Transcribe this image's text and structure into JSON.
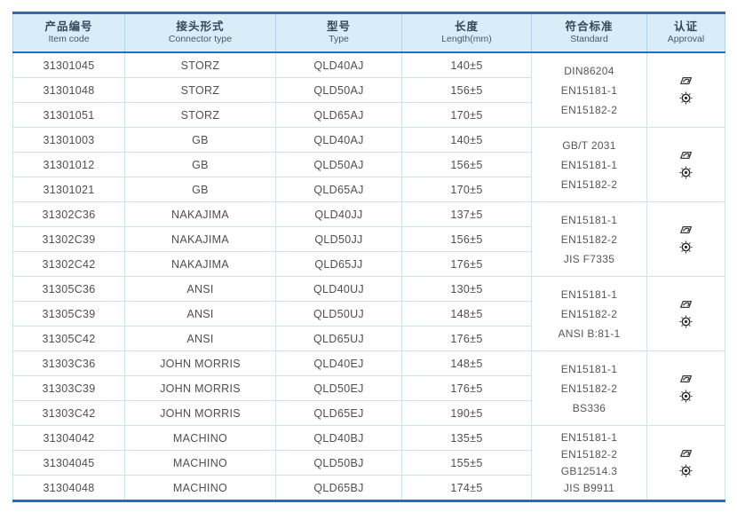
{
  "colors": {
    "accent_dark_blue": "#2a6cb5",
    "header_bg": "#d9edf8",
    "grid_line": "#c3e6f5",
    "header_grid_line": "#a7d8ef",
    "body_text": "#4f4f4f",
    "header_text": "#33475b",
    "icon_color": "#3a3a3a"
  },
  "table": {
    "headers": [
      {
        "zh": "产品编号",
        "en": "Item code"
      },
      {
        "zh": "接头形式",
        "en": "Connector type"
      },
      {
        "zh": "型号",
        "en": "Type"
      },
      {
        "zh": "长度",
        "en": "Length(mm)"
      },
      {
        "zh": "符合标准",
        "en": "Standard"
      },
      {
        "zh": "认证",
        "en": "Approval"
      }
    ],
    "groups": [
      {
        "rows": [
          {
            "item_code": "31301045",
            "connector_type": "STORZ",
            "type": "QLD40AJ",
            "length": "140±5"
          },
          {
            "item_code": "31301048",
            "connector_type": "STORZ",
            "type": "QLD50AJ",
            "length": "156±5"
          },
          {
            "item_code": "31301051",
            "connector_type": "STORZ",
            "type": "QLD65AJ",
            "length": "170±5"
          }
        ],
        "standards": [
          "DIN86204",
          "EN15181-1",
          "EN15182-2"
        ],
        "approval_icons": [
          "cert-logo-icon",
          "seal-badge-icon"
        ]
      },
      {
        "rows": [
          {
            "item_code": "31301003",
            "connector_type": "GB",
            "type": "QLD40AJ",
            "length": "140±5"
          },
          {
            "item_code": "31301012",
            "connector_type": "GB",
            "type": "QLD50AJ",
            "length": "156±5"
          },
          {
            "item_code": "31301021",
            "connector_type": "GB",
            "type": "QLD65AJ",
            "length": "170±5"
          }
        ],
        "standards": [
          "GB/T 2031",
          "EN15181-1",
          "EN15182-2"
        ],
        "approval_icons": [
          "cert-logo-icon",
          "seal-badge-icon"
        ]
      },
      {
        "rows": [
          {
            "item_code": "31302C36",
            "connector_type": "NAKAJIMA",
            "type": "QLD40JJ",
            "length": "137±5"
          },
          {
            "item_code": "31302C39",
            "connector_type": "NAKAJIMA",
            "type": "QLD50JJ",
            "length": "156±5"
          },
          {
            "item_code": "31302C42",
            "connector_type": "NAKAJIMA",
            "type": "QLD65JJ",
            "length": "176±5"
          }
        ],
        "standards": [
          "EN15181-1",
          "EN15182-2",
          "JIS F7335"
        ],
        "approval_icons": [
          "cert-logo-icon",
          "seal-badge-icon"
        ]
      },
      {
        "rows": [
          {
            "item_code": "31305C36",
            "connector_type": "ANSI",
            "type": "QLD40UJ",
            "length": "130±5"
          },
          {
            "item_code": "31305C39",
            "connector_type": "ANSI",
            "type": "QLD50UJ",
            "length": "148±5"
          },
          {
            "item_code": "31305C42",
            "connector_type": "ANSI",
            "type": "QLD65UJ",
            "length": "176±5"
          }
        ],
        "standards": [
          "EN15181-1",
          "EN15182-2",
          "ANSI B:81-1"
        ],
        "approval_icons": [
          "cert-logo-icon",
          "seal-badge-icon"
        ]
      },
      {
        "rows": [
          {
            "item_code": "31303C36",
            "connector_type": "JOHN MORRIS",
            "type": "QLD40EJ",
            "length": "148±5"
          },
          {
            "item_code": "31303C39",
            "connector_type": "JOHN MORRIS",
            "type": "QLD50EJ",
            "length": "176±5"
          },
          {
            "item_code": "31303C42",
            "connector_type": "JOHN MORRIS",
            "type": "QLD65EJ",
            "length": "190±5"
          }
        ],
        "standards": [
          "EN15181-1",
          "EN15182-2",
          "BS336"
        ],
        "approval_icons": [
          "cert-logo-icon",
          "seal-badge-icon"
        ]
      },
      {
        "rows": [
          {
            "item_code": "31304042",
            "connector_type": "MACHINO",
            "type": "QLD40BJ",
            "length": "135±5"
          },
          {
            "item_code": "31304045",
            "connector_type": "MACHINO",
            "type": "QLD50BJ",
            "length": "155±5"
          },
          {
            "item_code": "31304048",
            "connector_type": "MACHINO",
            "type": "QLD65BJ",
            "length": "174±5"
          }
        ],
        "standards": [
          "EN15181-1",
          "EN15182-2",
          "GB12514.3",
          "JIS B9911"
        ],
        "approval_icons": [
          "cert-logo-icon",
          "seal-badge-icon"
        ]
      }
    ]
  }
}
